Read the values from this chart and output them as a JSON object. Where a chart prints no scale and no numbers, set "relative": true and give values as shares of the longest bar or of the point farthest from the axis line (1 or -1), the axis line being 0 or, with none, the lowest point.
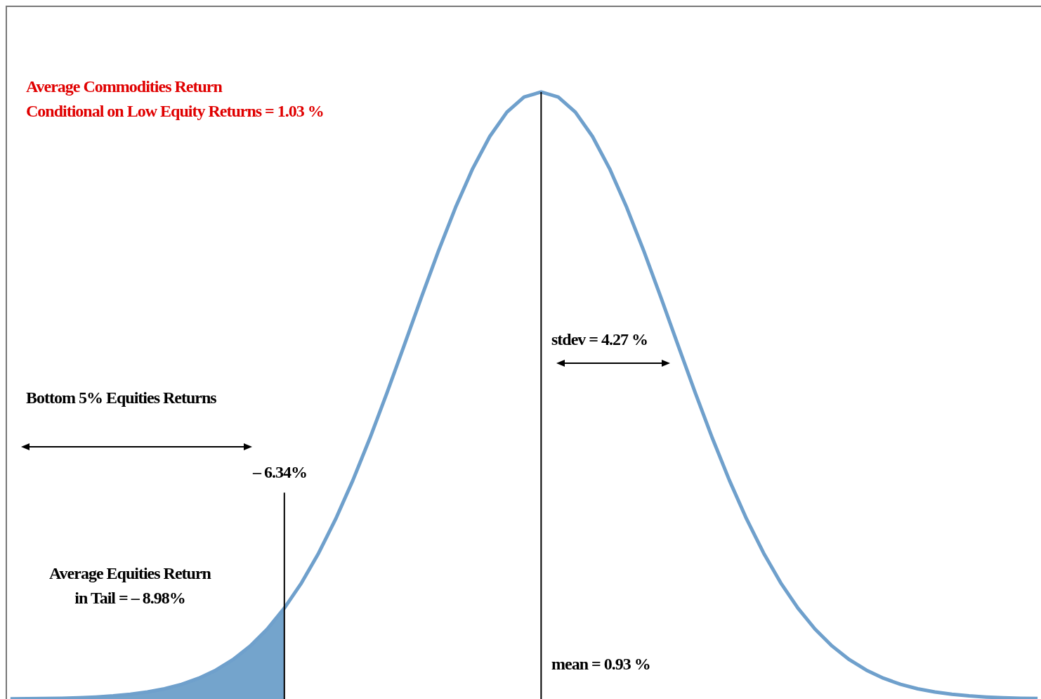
{
  "chart_data": {
    "type": "line",
    "relative": true,
    "tick_labels": false,
    "grid": false,
    "legend": false,
    "marker": "none",
    "line_style": "solid",
    "categories": [
      null,
      null,
      null,
      null,
      null,
      null,
      null,
      null,
      null,
      null,
      null,
      null,
      null,
      null,
      null,
      null,
      null,
      null,
      null,
      null,
      null,
      null,
      null,
      null,
      null,
      null,
      null,
      null,
      null,
      null,
      null,
      null,
      null,
      null,
      null,
      null,
      null,
      null,
      null,
      null,
      null,
      null,
      null,
      null,
      null,
      null,
      null,
      null,
      null,
      null,
      null,
      null,
      null,
      null,
      null,
      null,
      null,
      null,
      null,
      null,
      null
    ],
    "series": [
      {
        "color": "#6fa0cc",
        "values": [
          0.0003,
          0.0005,
          0.0008,
          0.0013,
          0.0021,
          0.0033,
          0.0051,
          0.0077,
          0.0115,
          0.0168,
          0.0242,
          0.0342,
          0.0475,
          0.0649,
          0.0872,
          0.1152,
          0.1497,
          0.1912,
          0.2402,
          0.2966,
          0.3601,
          0.4299,
          0.5047,
          0.5826,
          0.6613,
          0.738,
          0.8098,
          0.8737,
          0.9268,
          0.9668,
          0.9916,
          1,
          0.9916,
          0.9668,
          0.9268,
          0.8737,
          0.8098,
          0.738,
          0.6613,
          0.5826,
          0.5047,
          0.4299,
          0.3601,
          0.2966,
          0.2402,
          0.1912,
          0.1497,
          0.1152,
          0.0872,
          0.0649,
          0.0475,
          0.0342,
          0.0242,
          0.0168,
          0.0115,
          0.0077,
          0.0051,
          0.0033,
          0.0021,
          0.0013,
          0.0008
        ]
      },
      {
        "type": "area",
        "color": "#74a4cc",
        "values": [
          0.0003,
          0.0005,
          0.0008,
          0.0013,
          0.0021,
          0.0033,
          0.0051,
          0.0077,
          0.0115,
          0.0168,
          0.0242,
          0.0342,
          0.0475,
          0.0649,
          0.0872,
          0.1152,
          0.1497,
          null,
          null,
          null,
          null,
          null,
          null,
          null,
          null,
          null,
          null,
          null,
          null,
          null,
          null,
          null,
          null,
          null,
          null,
          null,
          null,
          null,
          null,
          null,
          null,
          null,
          null,
          null,
          null,
          null,
          null,
          null,
          null,
          null,
          null,
          null,
          null,
          null,
          null,
          null,
          null,
          null,
          null,
          null,
          null
        ]
      }
    ],
    "annotations": [
      "Average Commodities Return\nConditional on Low Equity Returns = 1.03 %",
      "stdev = 4.27 %",
      "Bottom 5%  Equities Returns",
      "Average Equities Return\nin Tail = – 8.98%",
      "– 6.34%",
      "mean = 0.93 %"
    ]
  }
}
